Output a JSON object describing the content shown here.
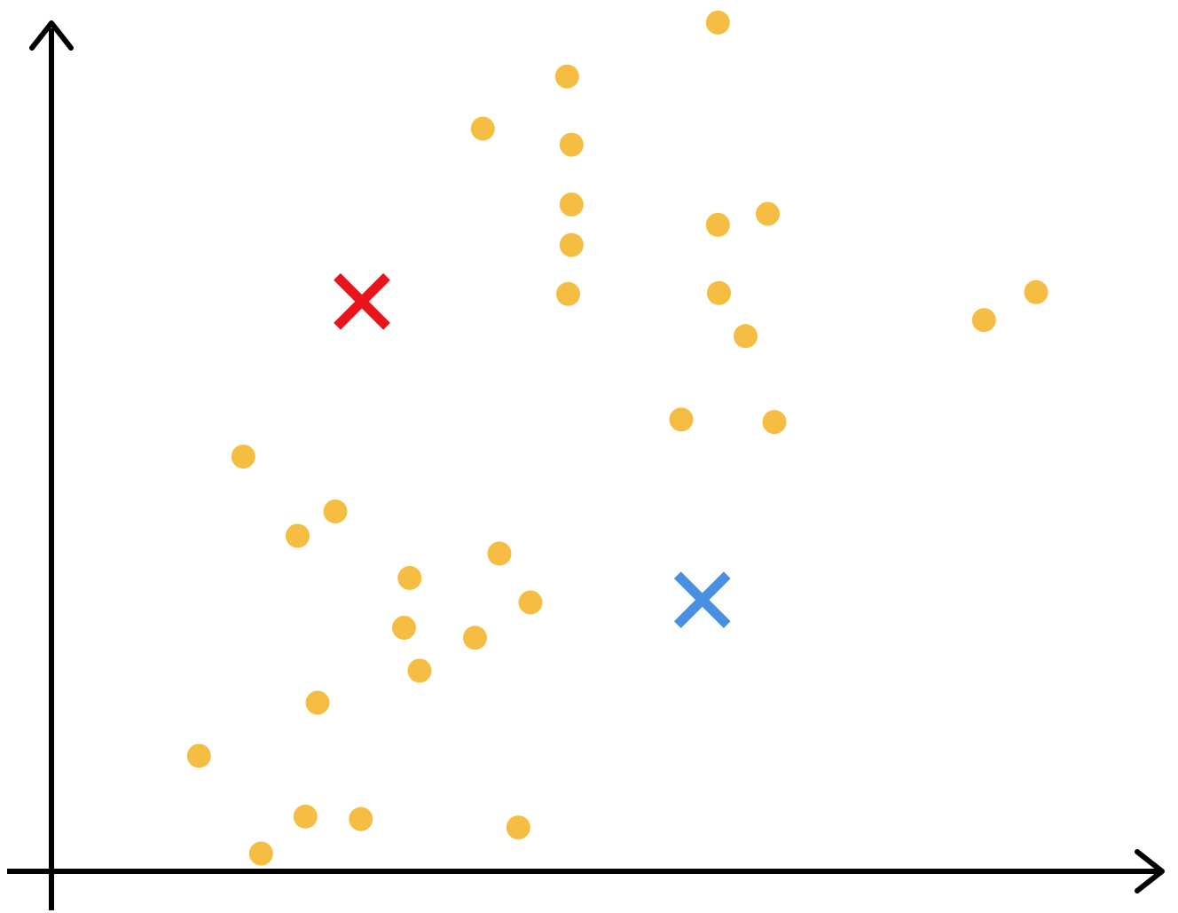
{
  "chart_data": {
    "type": "scatter",
    "title": "",
    "xlabel": "",
    "ylabel": "",
    "grid": false,
    "legend": "none",
    "xlim": [
      0,
      1000
    ],
    "ylim": [
      0,
      1000
    ],
    "points": [
      {
        "x": 601,
        "y": 1007
      },
      {
        "x": 465,
        "y": 943
      },
      {
        "x": 389,
        "y": 881
      },
      {
        "x": 469,
        "y": 862
      },
      {
        "x": 469,
        "y": 791
      },
      {
        "x": 601,
        "y": 767
      },
      {
        "x": 646,
        "y": 780
      },
      {
        "x": 469,
        "y": 743
      },
      {
        "x": 466,
        "y": 685
      },
      {
        "x": 602,
        "y": 686
      },
      {
        "x": 626,
        "y": 635
      },
      {
        "x": 841,
        "y": 654
      },
      {
        "x": 888,
        "y": 687
      },
      {
        "x": 568,
        "y": 536
      },
      {
        "x": 652,
        "y": 533
      },
      {
        "x": 173,
        "y": 492
      },
      {
        "x": 256,
        "y": 427
      },
      {
        "x": 222,
        "y": 398
      },
      {
        "x": 404,
        "y": 377
      },
      {
        "x": 323,
        "y": 348
      },
      {
        "x": 432,
        "y": 319
      },
      {
        "x": 318,
        "y": 289
      },
      {
        "x": 382,
        "y": 277
      },
      {
        "x": 332,
        "y": 238
      },
      {
        "x": 240,
        "y": 200
      },
      {
        "x": 133,
        "y": 137
      },
      {
        "x": 229,
        "y": 65
      },
      {
        "x": 279,
        "y": 62
      },
      {
        "x": 421,
        "y": 52
      },
      {
        "x": 189,
        "y": 21
      }
    ],
    "centroids": [
      {
        "name": "red",
        "x": 280,
        "y": 676
      },
      {
        "name": "blue",
        "x": 587,
        "y": 322
      }
    ],
    "colors": {
      "points": "#F5BD42",
      "centroid_red": "#E8141C",
      "centroid_blue": "#4A90E2",
      "axes": "#000000",
      "background": "#ffffff"
    }
  }
}
